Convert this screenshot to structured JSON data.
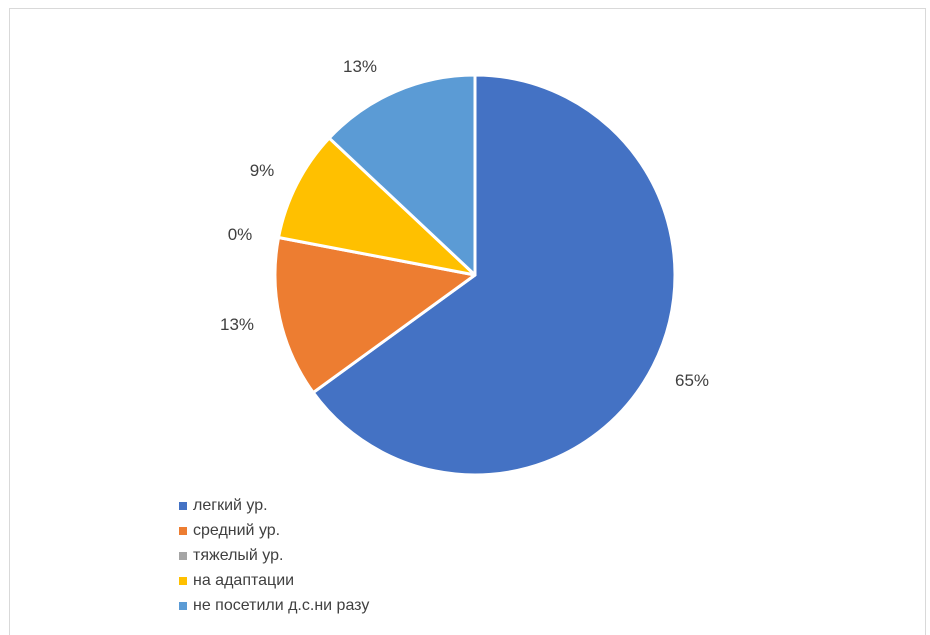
{
  "chart_data": {
    "type": "pie",
    "start": "12 o'clock, clockwise",
    "legend_position": "bottom-left",
    "slices": [
      {
        "label": "легкий ур.",
        "value": 65,
        "display": "65%",
        "color": "#4472C4"
      },
      {
        "label": "средний ур.",
        "value": 13,
        "display": "13%",
        "color": "#ED7D31"
      },
      {
        "label": "тяжелый ур.",
        "value": 0,
        "display": "0%",
        "color": "#A5A5A5"
      },
      {
        "label": "на адаптации",
        "value": 9,
        "display": "9%",
        "color": "#FFC000"
      },
      {
        "label": "не посетили д.с.ни разу",
        "value": 13,
        "display": "13%",
        "color": "#5B9BD5"
      }
    ]
  }
}
